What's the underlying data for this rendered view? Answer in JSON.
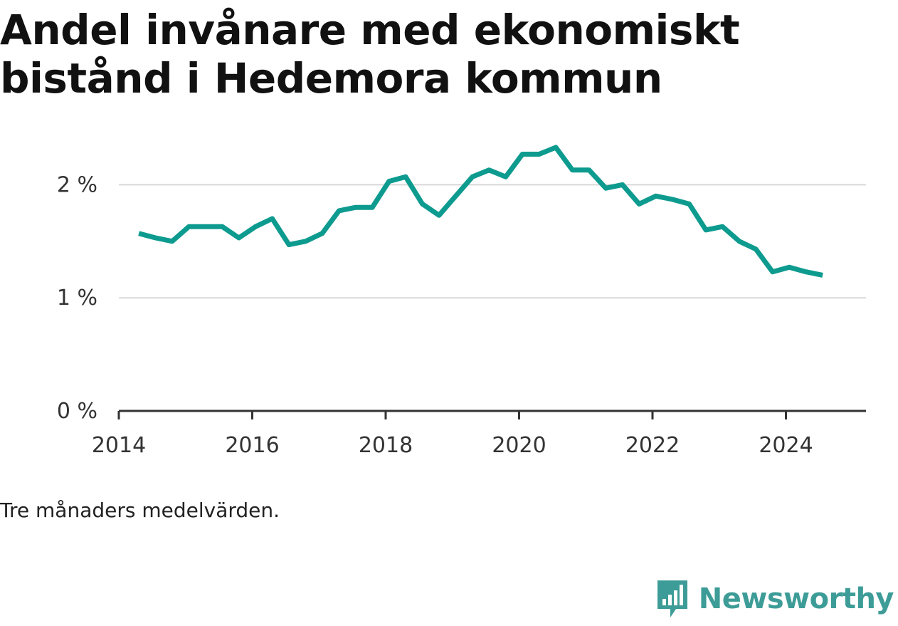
{
  "title": "Andel invånare med ekonomiskt bistånd i Hedemora kommun",
  "note": "Tre månaders medelvärden.",
  "brand": {
    "name": "Newsworthy",
    "icon": "newsworthy-logo-icon",
    "color": "#3d9c97"
  },
  "colors": {
    "line": "#0e9b8f",
    "grid": "#d9d9d9",
    "axis": "#333333",
    "text": "#333333"
  },
  "chart_data": {
    "type": "line",
    "title": "Andel invånare med ekonomiskt bistånd i Hedemora kommun",
    "xlabel": "",
    "ylabel": "",
    "xlim": [
      2014.0,
      2025.2
    ],
    "ylim": [
      0,
      2.5
    ],
    "xticks": [
      2014,
      2016,
      2018,
      2020,
      2022,
      2024
    ],
    "yticks": [
      {
        "value": 0,
        "label": "0 %"
      },
      {
        "value": 1,
        "label": "1 %"
      },
      {
        "value": 2,
        "label": "2 %"
      }
    ],
    "grid": true,
    "series": [
      {
        "x": [
          2014.3,
          2014.55,
          2014.8,
          2015.05,
          2015.3,
          2015.55,
          2015.8,
          2016.05,
          2016.3,
          2016.55,
          2016.8,
          2017.05,
          2017.3,
          2017.55,
          2017.8,
          2018.05,
          2018.3,
          2018.55,
          2018.8,
          2019.05,
          2019.3,
          2019.55,
          2019.8,
          2020.05,
          2020.3,
          2020.55,
          2020.8,
          2021.05,
          2021.3,
          2021.55,
          2021.8,
          2022.05,
          2022.3,
          2022.55,
          2022.8,
          2023.05,
          2023.3,
          2023.55,
          2023.8,
          2024.05,
          2024.3,
          2024.55
        ],
        "values": [
          1.57,
          1.53,
          1.5,
          1.63,
          1.63,
          1.63,
          1.53,
          1.63,
          1.7,
          1.47,
          1.5,
          1.57,
          1.77,
          1.8,
          1.8,
          2.03,
          2.07,
          1.83,
          1.73,
          1.9,
          2.07,
          2.13,
          2.07,
          2.27,
          2.27,
          2.33,
          2.13,
          2.13,
          1.97,
          2.0,
          1.83,
          1.9,
          1.87,
          1.83,
          1.6,
          1.63,
          1.5,
          1.43,
          1.23,
          1.27,
          1.23,
          1.2
        ]
      }
    ]
  }
}
